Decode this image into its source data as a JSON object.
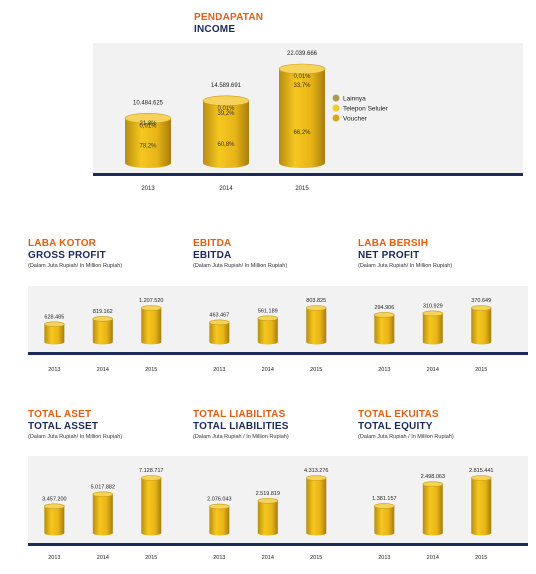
{
  "income": {
    "title_id": "PENDAPATAN",
    "title_en": "INCOME",
    "legend": [
      "Lainnya",
      "Telepon Seluler",
      "Voucher"
    ],
    "colors": [
      "#b09a5a",
      "#f7c826",
      "#d8a51e"
    ]
  },
  "chart_data": [
    {
      "type": "bar",
      "title": "INCOME",
      "categories": [
        "2013",
        "2014",
        "2015"
      ],
      "totals": [
        "10.484.625",
        "14.589.691",
        "22.039.666"
      ],
      "series": [
        {
          "name": "Voucher",
          "labels": [
            "78,2%",
            "60,8%",
            "66,2%"
          ]
        },
        {
          "name": "Telepon Seluler",
          "labels": [
            "21,8%",
            "39,2%",
            "33,7%"
          ]
        },
        {
          "name": "Lainnya",
          "labels": [
            "0,01%",
            "0,01%",
            "0,01%"
          ]
        }
      ]
    },
    {
      "type": "bar",
      "title_id": "LABA KOTOR",
      "title_en": "GROSS PROFIT",
      "subtitle": "(Dalam Juta Rupiah/ In Million Rupiah)",
      "categories": [
        "2013",
        "2014",
        "2015"
      ],
      "values": [
        628485,
        819162,
        1207520
      ],
      "labels": [
        "628.485",
        "819.162",
        "1.207.520"
      ]
    },
    {
      "type": "bar",
      "title_id": "EBITDA",
      "title_en": "EBITDA",
      "subtitle": "(Dalam Juta Rupiah/ In Million Rupiah)",
      "categories": [
        "2013",
        "2014",
        "2015"
      ],
      "values": [
        463467,
        561189,
        803825
      ],
      "labels": [
        "463.467",
        "561.189",
        "803.825"
      ]
    },
    {
      "type": "bar",
      "title_id": "LABA BERSIH",
      "title_en": "NET PROFIT",
      "subtitle": "(Dalam Juta Rupiah/ In Million Rupiah)",
      "categories": [
        "2013",
        "2014",
        "2015"
      ],
      "values": [
        294906,
        310929,
        370649
      ],
      "labels": [
        "294.906",
        "310.929",
        "370.649"
      ]
    },
    {
      "type": "bar",
      "title_id": "TOTAL ASET",
      "title_en": "TOTAL ASSET",
      "subtitle": "(Dalam Juta Rupiah/ In Million Rupiah)",
      "categories": [
        "2013",
        "2014",
        "2015"
      ],
      "values": [
        3457200,
        5017882,
        7128717
      ],
      "labels": [
        "3.457.200",
        "5.017.882",
        "7.128.717"
      ]
    },
    {
      "type": "bar",
      "title_id": "TOTAL LIABILITAS",
      "title_en": "TOTAL LIABILITIES",
      "subtitle": "(Dalam Juta Rupiah / In Million Rupiah)",
      "categories": [
        "2013",
        "2014",
        "2015"
      ],
      "values": [
        2076043,
        2519819,
        4313276
      ],
      "labels": [
        "2.076.043",
        "2.519.819",
        "4.313.276"
      ]
    },
    {
      "type": "bar",
      "title_id": "TOTAL EKUITAS",
      "title_en": "TOTAL EQUITY",
      "subtitle": "(Dalam Juta Rupiah / In Million Rupiah)",
      "categories": [
        "2013",
        "2014",
        "2015"
      ],
      "values": [
        1381157,
        2498063,
        2815441
      ],
      "labels": [
        "1.381.157",
        "2.498.063",
        "2.815.441"
      ]
    }
  ]
}
